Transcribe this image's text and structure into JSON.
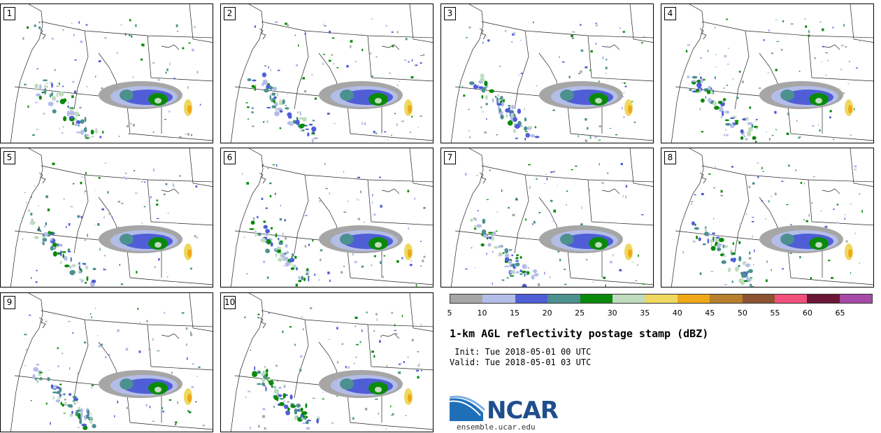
{
  "panels": [
    {
      "number": "1"
    },
    {
      "number": "2"
    },
    {
      "number": "3"
    },
    {
      "number": "4"
    },
    {
      "number": "5"
    },
    {
      "number": "6"
    },
    {
      "number": "7"
    },
    {
      "number": "8"
    },
    {
      "number": "9"
    },
    {
      "number": "10"
    }
  ],
  "legend": {
    "colors": [
      "#a6a6a6",
      "#b4bde8",
      "#4f5ed6",
      "#4c9090",
      "#0a8a0a",
      "#bfdcbf",
      "#eed860",
      "#eea818",
      "#b8802e",
      "#8c5232",
      "#f0507a",
      "#6a1634",
      "#a84aa8"
    ],
    "ticks": [
      "5",
      "10",
      "15",
      "20",
      "25",
      "30",
      "35",
      "40",
      "45",
      "50",
      "55",
      "60",
      "65"
    ]
  },
  "title": "1-km AGL reflectivity postage stamp (dBZ)",
  "init": " Init: Tue 2018-05-01 00 UTC",
  "valid": "Valid: Tue 2018-05-01 03 UTC",
  "logo": {
    "text": "NCAR",
    "url": "ensemble.ucar.edu"
  }
}
